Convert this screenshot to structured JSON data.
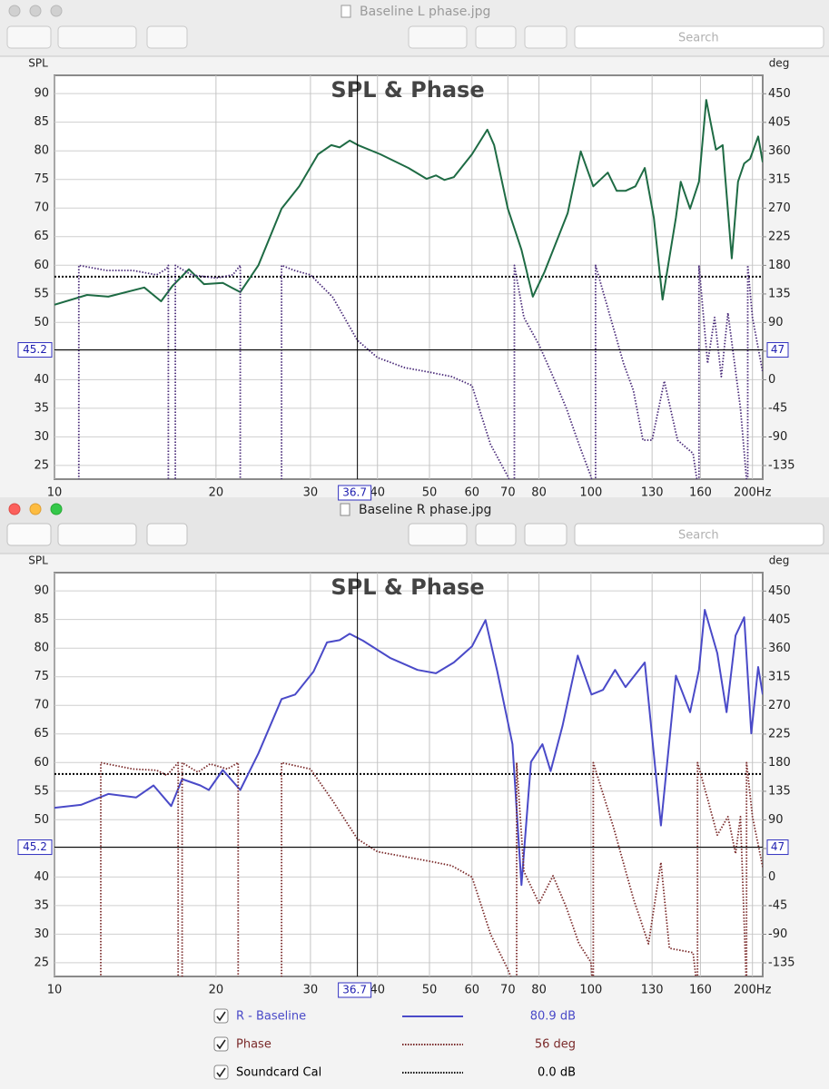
{
  "windows": [
    {
      "title": "Baseline L phase.jpg",
      "search": "Search"
    },
    {
      "title": "Baseline R phase.jpg",
      "search": "Search"
    }
  ],
  "chart_data": [
    {
      "type": "line",
      "title": "SPL & Phase",
      "ylabel": "SPL",
      "y2label": "deg",
      "xscale": "log",
      "xlim": [
        10,
        209
      ],
      "ylim": [
        22.6,
        93.2
      ],
      "y2lim": [
        -156.4,
        479
      ],
      "xticks": [
        10,
        20,
        30,
        40,
        50,
        60,
        70,
        80,
        100,
        130,
        160,
        {
          "value": 200,
          "label": "200Hz"
        }
      ],
      "yticks": [
        25,
        30,
        35,
        40,
        45,
        50,
        55,
        60,
        65,
        70,
        75,
        80,
        85,
        90
      ],
      "y2ticks": [
        -135,
        -90,
        -45,
        0,
        45,
        90,
        135,
        180,
        225,
        270,
        315,
        360,
        405,
        450
      ],
      "grid": true,
      "cursor": {
        "x": {
          "value": 36.7,
          "label": "36.7"
        },
        "y": 45.2,
        "y2": 47
      },
      "reference": {
        "value": 58,
        "color": "#000000"
      },
      "series": [
        {
          "color": "#1e6b44",
          "style": "solid",
          "x": [
            10,
            11.5,
            12.6,
            14.7,
            15.8,
            16.6,
            17.8,
            19,
            20.6,
            22.2,
            24,
            26.5,
            28.6,
            31,
            32.8,
            34,
            35.5,
            36.8,
            40.5,
            45.7,
            49.4,
            51.4,
            53.3,
            55.5,
            60,
            64.1,
            66,
            70,
            74.2,
            77.9,
            81.9,
            90.5,
            95.7,
            101,
            107.5,
            111.7,
            116,
            121,
            126,
            131,
            136,
            144,
            147,
            153,
            159,
            164,
            171,
            176,
            183,
            188,
            193,
            198,
            205,
            209
          ],
          "values": [
            53.1,
            54.8,
            54.5,
            56.1,
            53.7,
            56.4,
            59.3,
            56.7,
            56.9,
            55.3,
            60,
            69.9,
            73.8,
            79.4,
            81,
            80.6,
            81.8,
            81,
            79.4,
            77,
            75.1,
            75.7,
            74.9,
            75.4,
            79.4,
            83.7,
            81,
            69.9,
            62.7,
            54.5,
            58.8,
            69.1,
            79.9,
            73.8,
            76.2,
            73,
            73,
            73.8,
            77,
            68.3,
            54,
            68.3,
            74.6,
            69.9,
            74.6,
            88.9,
            80.2,
            81,
            61.2,
            74.6,
            77.8,
            78.6,
            82.5,
            78
          ]
        },
        {
          "color": "#4b2c7a",
          "style": "dotted",
          "axis": "y2",
          "x": [
            10,
            11.1,
            11.1,
            12.5,
            14,
            15.5,
            16.2,
            16.3,
            16.3,
            16.8,
            16.8,
            18,
            20,
            21.5,
            22.2,
            22.2,
            24,
            25,
            26.5,
            26.5,
            28,
            30,
            33,
            36.7,
            40,
            45,
            50,
            55,
            60,
            65,
            70,
            72,
            72,
            75,
            80,
            85,
            90,
            95,
            100,
            102,
            102,
            110,
            115,
            120,
            125,
            130,
            137,
            145,
            155,
            159,
            159,
            165,
            170,
            175,
            180,
            190,
            196,
            196,
            200,
            209
          ],
          "values": [
            -172,
            -180,
            180,
            172,
            172,
            165,
            175,
            180,
            -180,
            -180,
            180,
            165,
            160,
            165,
            180,
            -180,
            -165,
            -172,
            -180,
            180,
            172,
            165,
            130,
            62,
            35,
            19,
            12,
            5,
            -9,
            -102,
            -152,
            -180,
            180,
            98,
            55,
            5,
            -45,
            -102,
            -152,
            -180,
            180,
            83,
            26,
            -17,
            -95,
            -95,
            -2,
            -95,
            -116,
            -180,
            180,
            26,
            98,
            5,
            105,
            -45,
            -180,
            180,
            98,
            12
          ]
        }
      ]
    },
    {
      "type": "line",
      "title": "SPL & Phase",
      "ylabel": "SPL",
      "y2label": "deg",
      "xscale": "log",
      "xlim": [
        10,
        209
      ],
      "ylim": [
        22.6,
        93.2
      ],
      "y2lim": [
        -156.4,
        479
      ],
      "xticks": [
        10,
        20,
        30,
        40,
        50,
        60,
        70,
        80,
        100,
        130,
        160,
        {
          "value": 200,
          "label": "200Hz"
        }
      ],
      "yticks": [
        25,
        30,
        35,
        40,
        45,
        50,
        55,
        60,
        65,
        70,
        75,
        80,
        85,
        90
      ],
      "y2ticks": [
        -135,
        -90,
        -45,
        0,
        45,
        90,
        135,
        180,
        225,
        270,
        315,
        360,
        405,
        450
      ],
      "grid": true,
      "cursor": {
        "x": {
          "value": 36.7,
          "label": "36.7"
        },
        "y": 45.2,
        "y2": 47
      },
      "reference": {
        "name": "Soundcard Cal",
        "reading": "0.0 dB",
        "value": 58,
        "color": "#000000"
      },
      "series": [
        {
          "name": "R - Baseline",
          "reading": "80.9 dB",
          "color": "#4a4ac8",
          "style": "solid",
          "x": [
            10,
            11.2,
            12.6,
            14.2,
            15.3,
            16.5,
            17.3,
            18.7,
            19.4,
            20.6,
            22.2,
            24,
            26.5,
            28.1,
            30.4,
            32.2,
            34,
            35.5,
            37.6,
            42.2,
            47.5,
            51.4,
            55.5,
            60,
            63.6,
            66.9,
            71.4,
            74.2,
            77.3,
            81.2,
            84.1,
            88.5,
            94.5,
            100.2,
            105.3,
            110.9,
            116,
            126,
            135,
            144,
            153,
            159,
            163,
            172,
            179,
            186,
            193,
            199,
            205,
            209
          ],
          "values": [
            52.1,
            52.6,
            54.5,
            53.9,
            56,
            52.4,
            57.1,
            56,
            55.2,
            58.7,
            55.2,
            61.6,
            71.1,
            71.9,
            75.9,
            81,
            81.4,
            82.5,
            81.3,
            78.3,
            76.2,
            75.6,
            77.5,
            80.3,
            84.9,
            75.9,
            63.2,
            38.6,
            60.1,
            63.2,
            58.5,
            66.4,
            78.7,
            71.9,
            72.7,
            76.2,
            73.2,
            77.5,
            49,
            75.2,
            68.8,
            76.2,
            86.7,
            79.1,
            68.8,
            82.2,
            85.4,
            65.1,
            76.7,
            71.9
          ]
        },
        {
          "name": "Phase",
          "reading": "56 deg",
          "color": "#7a2a2a",
          "style": "dotted",
          "axis": "y2",
          "x": [
            10,
            12.2,
            12.2,
            14,
            15.5,
            16.2,
            17,
            17,
            17.3,
            17.3,
            18.5,
            19.5,
            21,
            22,
            22,
            24,
            26.5,
            26.5,
            30,
            33,
            36.7,
            40,
            50,
            55,
            60,
            65,
            70,
            72.7,
            72.7,
            75,
            80,
            85,
            90,
            95,
            100,
            101,
            101,
            110,
            120,
            128,
            135,
            140,
            155,
            158,
            158,
            165,
            172,
            180,
            186,
            190,
            195,
            195,
            200,
            209
          ],
          "values": [
            -170,
            -180,
            180,
            170,
            168,
            160,
            180,
            -180,
            -180,
            180,
            165,
            178,
            170,
            180,
            -180,
            -170,
            -180,
            180,
            170,
            120,
            60,
            40,
            25,
            18,
            0,
            -90,
            -145,
            -180,
            180,
            9,
            -41,
            2,
            -48,
            -105,
            -134,
            -180,
            180,
            80,
            -34,
            -105,
            23,
            -112,
            -119,
            -180,
            180,
            123,
            66,
            95,
            37,
            95,
            -180,
            180,
            95,
            16
          ]
        }
      ]
    }
  ]
}
